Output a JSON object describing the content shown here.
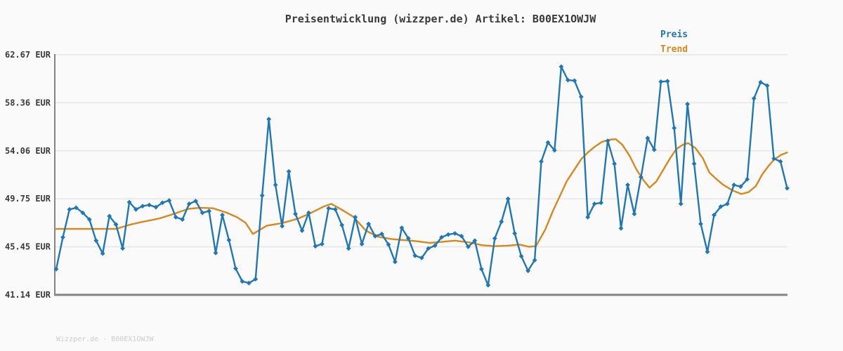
{
  "title": "Preisentwicklung (wizzper.de) Artikel: B00EX1OWJW",
  "footer": "Wizzper.de - B00EX1OWJW",
  "colors": {
    "preis": "#1f77b4",
    "trend": "#d8881c",
    "grid": "#e4e4e4",
    "axis": "#848484",
    "text": "#3a3a3a",
    "footer_text": "#cccccc",
    "background": "#fafafa"
  },
  "legend": {
    "items": [
      {
        "label": "Preis",
        "color": "#1f77b4"
      },
      {
        "label": "Trend",
        "color": "#d8881c"
      }
    ]
  },
  "chart_data": {
    "type": "line",
    "title": "Preisentwicklung (wizzper.de) Artikel: B00EX1OWJW",
    "xlabel": "",
    "ylabel": "EUR",
    "ylim": [
      41.14,
      62.67
    ],
    "grid": "horizontal",
    "legend_position": "top-right",
    "x_tick_labels_visible": false,
    "y_ticks": [
      {
        "label": "62.67 EUR",
        "value": 62.67
      },
      {
        "label": "58.36 EUR",
        "value": 58.36
      },
      {
        "label": "54.06 EUR",
        "value": 54.06
      },
      {
        "label": "49.75 EUR",
        "value": 49.75
      },
      {
        "label": "45.45 EUR",
        "value": 45.45
      },
      {
        "label": "41.14 EUR",
        "value": 41.14
      }
    ],
    "series": [
      {
        "name": "Preis",
        "color": "#1f77b4",
        "marker": "diamond",
        "values": [
          43.45,
          46.3,
          48.8,
          48.95,
          48.5,
          47.9,
          46.0,
          44.85,
          48.2,
          47.45,
          45.3,
          49.45,
          48.8,
          49.1,
          49.2,
          49.0,
          49.4,
          49.6,
          48.1,
          47.9,
          49.3,
          49.55,
          48.5,
          48.65,
          44.9,
          48.3,
          46.05,
          43.5,
          42.35,
          42.2,
          42.55,
          50.05,
          56.9,
          51.0,
          47.3,
          52.2,
          48.4,
          46.9,
          48.5,
          45.5,
          45.7,
          48.9,
          48.8,
          47.4,
          45.3,
          48.1,
          45.7,
          47.5,
          46.4,
          46.6,
          45.65,
          44.1,
          47.15,
          46.2,
          44.65,
          44.45,
          45.3,
          45.55,
          46.3,
          46.55,
          46.65,
          46.4,
          45.45,
          46.0,
          43.45,
          42.0,
          46.2,
          47.7,
          49.75,
          46.65,
          44.6,
          43.3,
          44.25,
          53.1,
          54.8,
          54.1,
          61.6,
          60.4,
          60.35,
          58.9,
          48.1,
          49.3,
          49.4,
          54.95,
          52.9,
          47.1,
          51.0,
          48.4,
          51.7,
          55.2,
          54.15,
          60.25,
          60.3,
          56.1,
          49.3,
          58.25,
          52.9,
          47.5,
          45.0,
          48.3,
          49.05,
          49.3,
          51.0,
          50.85,
          51.5,
          58.75,
          60.2,
          59.9,
          53.35,
          53.1,
          50.7
        ]
      },
      {
        "name": "Trend",
        "color": "#d8881c",
        "marker": "none",
        "points": [
          [
            0,
            47.05
          ],
          [
            9.0,
            47.05
          ],
          [
            10.9,
            47.4
          ],
          [
            12.7,
            47.65
          ],
          [
            14.0,
            47.8
          ],
          [
            15.6,
            48.0
          ],
          [
            17.7,
            48.4
          ],
          [
            19.9,
            48.85
          ],
          [
            21.7,
            48.95
          ],
          [
            23.6,
            48.9
          ],
          [
            25.7,
            48.5
          ],
          [
            27.2,
            48.1
          ],
          [
            28.5,
            47.6
          ],
          [
            29.6,
            46.6
          ],
          [
            31.7,
            47.35
          ],
          [
            33.8,
            47.55
          ],
          [
            35.1,
            47.75
          ],
          [
            36.5,
            48.0
          ],
          [
            38.4,
            48.5
          ],
          [
            40.2,
            49.05
          ],
          [
            41.4,
            49.3
          ],
          [
            42.6,
            48.9
          ],
          [
            44.7,
            48.15
          ],
          [
            46.6,
            46.9
          ],
          [
            48.4,
            46.35
          ],
          [
            50.4,
            46.15
          ],
          [
            52.3,
            46.05
          ],
          [
            54.2,
            45.95
          ],
          [
            56.2,
            45.8
          ],
          [
            58.1,
            45.9
          ],
          [
            60.0,
            46.0
          ],
          [
            62.1,
            45.85
          ],
          [
            64.0,
            45.6
          ],
          [
            65.9,
            45.5
          ],
          [
            67.9,
            45.55
          ],
          [
            69.8,
            45.65
          ],
          [
            71.1,
            45.45
          ],
          [
            72.2,
            45.5
          ],
          [
            73.6,
            47.0
          ],
          [
            74.7,
            48.6
          ],
          [
            75.8,
            50.0
          ],
          [
            76.8,
            51.3
          ],
          [
            77.9,
            52.3
          ],
          [
            79.0,
            53.3
          ],
          [
            80.0,
            53.9
          ],
          [
            81.1,
            54.45
          ],
          [
            82.1,
            54.85
          ],
          [
            83.3,
            55.05
          ],
          [
            84.2,
            55.1
          ],
          [
            85.2,
            54.6
          ],
          [
            86.3,
            53.6
          ],
          [
            87.3,
            52.4
          ],
          [
            88.4,
            51.4
          ],
          [
            89.3,
            50.75
          ],
          [
            90.3,
            51.3
          ],
          [
            91.2,
            52.2
          ],
          [
            92.3,
            53.3
          ],
          [
            93.3,
            54.2
          ],
          [
            94.3,
            54.6
          ],
          [
            95.1,
            54.75
          ],
          [
            96.2,
            54.3
          ],
          [
            97.3,
            53.4
          ],
          [
            98.3,
            52.1
          ],
          [
            99.4,
            51.5
          ],
          [
            100.4,
            51.0
          ],
          [
            101.8,
            50.5
          ],
          [
            103.1,
            50.18
          ],
          [
            104.2,
            50.35
          ],
          [
            105.3,
            50.9
          ],
          [
            106.2,
            51.9
          ],
          [
            107.2,
            52.7
          ],
          [
            108.0,
            53.25
          ],
          [
            109.1,
            53.7
          ],
          [
            110,
            53.9
          ]
        ]
      }
    ]
  }
}
